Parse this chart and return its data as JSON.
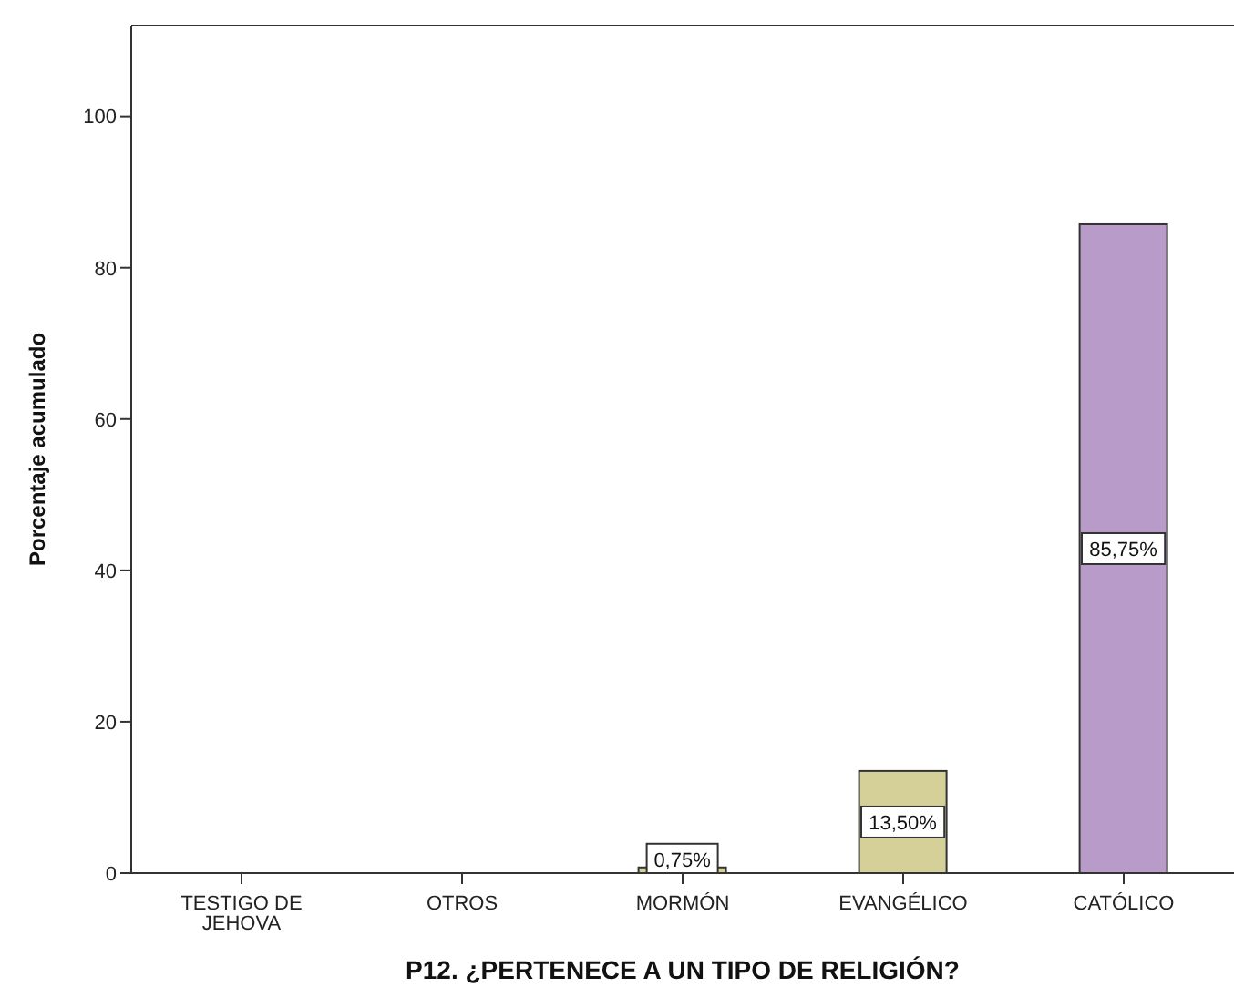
{
  "chart_data": {
    "type": "bar",
    "categories": [
      "TESTIGO DE JEHOVA",
      "OTROS",
      "MORMÓN",
      "EVANGÉLICO",
      "CATÓLICO"
    ],
    "values": [
      0,
      0,
      0.75,
      13.5,
      85.75
    ],
    "colors": [
      "#d5d098",
      "#d5d098",
      "#d5d098",
      "#d5d098",
      "#b99bc9"
    ],
    "value_labels": [
      null,
      null,
      "0,75%",
      "13,50%",
      "85,75%"
    ],
    "xlabel": "P12. ¿PERTENECE A UN TIPO DE RELIGIÓN?",
    "ylabel": "Porcentaje acumulado",
    "ylim": [
      0,
      112
    ],
    "yticks": [
      0,
      20,
      40,
      60,
      80,
      100
    ],
    "grid": false
  }
}
